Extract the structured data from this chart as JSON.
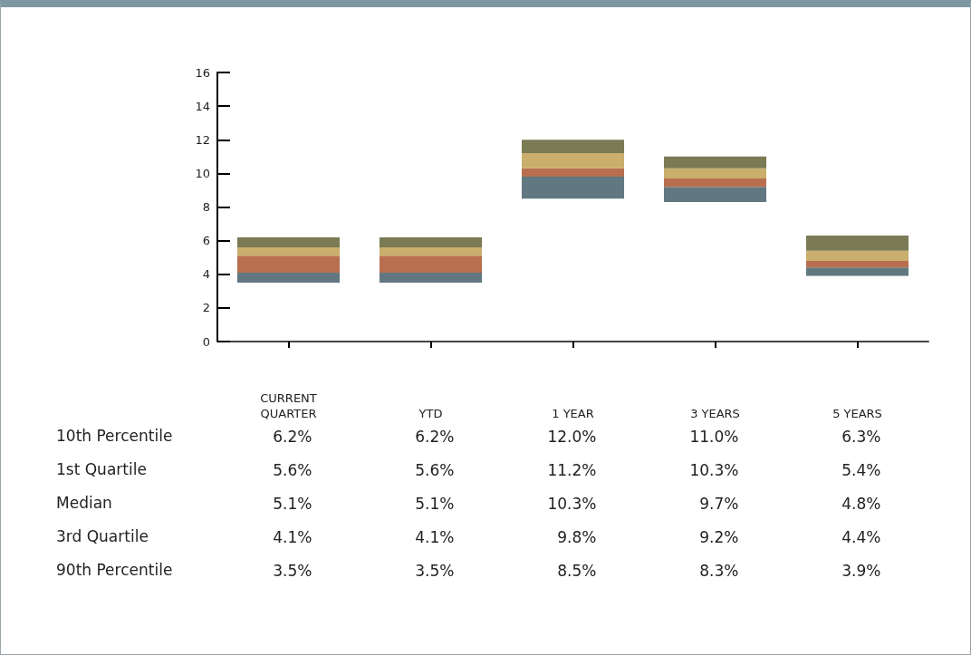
{
  "chart_data": {
    "type": "bar",
    "stacked": true,
    "categories": [
      "CURRENT\nQUARTER",
      "YTD",
      "1 YEAR",
      "3 YEARS",
      "5 YEARS"
    ],
    "series": [
      {
        "color": "#627880",
        "base": [
          3.5,
          3.5,
          8.5,
          8.3,
          3.9
        ],
        "values": [
          0.6,
          0.6,
          1.3,
          0.9,
          0.5
        ]
      },
      {
        "color": "#b86f50",
        "values": [
          1.0,
          1.0,
          0.5,
          0.5,
          0.4
        ]
      },
      {
        "color": "#c9ae6c",
        "values": [
          0.5,
          0.5,
          0.9,
          0.6,
          0.6
        ]
      },
      {
        "color": "#7a7a55",
        "values": [
          0.6,
          0.6,
          0.8,
          0.7,
          0.9
        ]
      }
    ],
    "ylim": [
      0,
      16
    ],
    "yticks": [
      0,
      2,
      4,
      6,
      8,
      10,
      12,
      14,
      16
    ],
    "grid": false,
    "y_categories": [
      "10th Percentile",
      "1st Quartile",
      "Median",
      "3rd Quartile",
      "90th Percentile"
    ],
    "cell_labels": [
      [
        "6.2%",
        "6.2%",
        "12.0%",
        "11.0%",
        "6.3%"
      ],
      [
        "5.6%",
        "5.6%",
        "11.2%",
        "10.3%",
        "5.4%"
      ],
      [
        "5.1%",
        "5.1%",
        "10.3%",
        "9.7%",
        "4.8%"
      ],
      [
        "4.1%",
        "4.1%",
        "9.8%",
        "9.2%",
        "4.4%"
      ],
      [
        "3.5%",
        "3.5%",
        "8.5%",
        "8.3%",
        "3.9%"
      ]
    ]
  }
}
